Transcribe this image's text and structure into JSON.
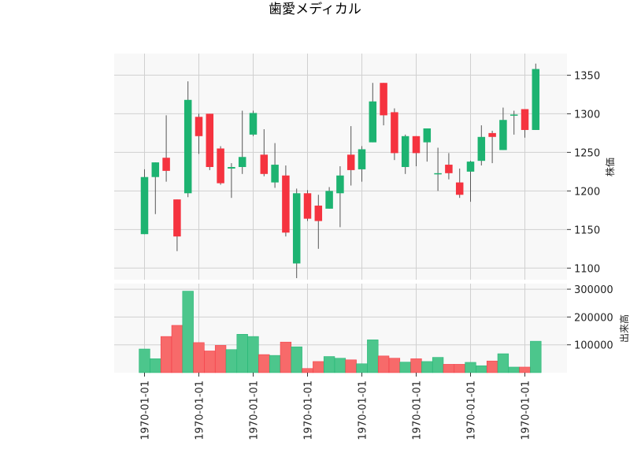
{
  "chart_data": {
    "type": "candlestick",
    "title": "歯愛メディカル",
    "price_ylabel": "株価",
    "volume_ylabel": "出来高",
    "price_ylim": [
      1085,
      1378
    ],
    "price_yticks": [
      1100,
      1150,
      1200,
      1250,
      1300,
      1350
    ],
    "volume_ylim": [
      0,
      320000
    ],
    "volume_yticks": [
      100000,
      200000,
      300000
    ],
    "volume_ytick_labels": [
      "100000",
      "200000",
      "300000"
    ],
    "x_tick_labels": [
      "1970-01-01",
      "1970-01-01",
      "1970-01-01",
      "1970-01-01",
      "1970-01-01",
      "1970-01-01",
      "1970-01-01",
      "1970-01-01"
    ],
    "x_tick_index": [
      0,
      5,
      10,
      15,
      20,
      25,
      30,
      35
    ],
    "colors": {
      "up": "#1db371",
      "down": "#f5333f",
      "up_volume": "#4cc68c",
      "down_volume": "#f76a6a",
      "wick": "#555555"
    },
    "candles": [
      {
        "o": 1144,
        "h": 1228,
        "l": 1144,
        "c": 1218,
        "v": 85000
      },
      {
        "o": 1218,
        "h": 1237,
        "l": 1170,
        "c": 1237,
        "v": 50000
      },
      {
        "o": 1243,
        "h": 1298,
        "l": 1212,
        "c": 1226,
        "v": 130000
      },
      {
        "o": 1189,
        "h": 1189,
        "l": 1122,
        "c": 1141,
        "v": 170000
      },
      {
        "o": 1197,
        "h": 1342,
        "l": 1192,
        "c": 1318,
        "v": 293000
      },
      {
        "o": 1296,
        "h": 1300,
        "l": 1248,
        "c": 1271,
        "v": 108000
      },
      {
        "o": 1300,
        "h": 1300,
        "l": 1227,
        "c": 1231,
        "v": 78000
      },
      {
        "o": 1255,
        "h": 1258,
        "l": 1208,
        "c": 1210,
        "v": 98000
      },
      {
        "o": 1229,
        "h": 1236,
        "l": 1191,
        "c": 1231,
        "v": 83000
      },
      {
        "o": 1231,
        "h": 1304,
        "l": 1222,
        "c": 1244,
        "v": 138000
      },
      {
        "o": 1273,
        "h": 1304,
        "l": 1271,
        "c": 1301,
        "v": 130000
      },
      {
        "o": 1247,
        "h": 1280,
        "l": 1219,
        "c": 1222,
        "v": 65000
      },
      {
        "o": 1211,
        "h": 1262,
        "l": 1204,
        "c": 1234,
        "v": 62000
      },
      {
        "o": 1220,
        "h": 1233,
        "l": 1141,
        "c": 1146,
        "v": 110000
      },
      {
        "o": 1106,
        "h": 1203,
        "l": 1087,
        "c": 1197,
        "v": 93000
      },
      {
        "o": 1197,
        "h": 1201,
        "l": 1161,
        "c": 1164,
        "v": 15000
      },
      {
        "o": 1181,
        "h": 1195,
        "l": 1125,
        "c": 1161,
        "v": 40000
      },
      {
        "o": 1177,
        "h": 1205,
        "l": 1177,
        "c": 1200,
        "v": 58000
      },
      {
        "o": 1197,
        "h": 1232,
        "l": 1153,
        "c": 1220,
        "v": 52000
      },
      {
        "o": 1247,
        "h": 1284,
        "l": 1207,
        "c": 1227,
        "v": 46000
      },
      {
        "o": 1228,
        "h": 1258,
        "l": 1212,
        "c": 1254,
        "v": 32000
      },
      {
        "o": 1263,
        "h": 1340,
        "l": 1263,
        "c": 1316,
        "v": 118000
      },
      {
        "o": 1340,
        "h": 1340,
        "l": 1285,
        "c": 1298,
        "v": 60000
      },
      {
        "o": 1302,
        "h": 1307,
        "l": 1240,
        "c": 1249,
        "v": 52000
      },
      {
        "o": 1231,
        "h": 1273,
        "l": 1222,
        "c": 1271,
        "v": 38000
      },
      {
        "o": 1271,
        "h": 1271,
        "l": 1232,
        "c": 1249,
        "v": 50000
      },
      {
        "o": 1263,
        "h": 1281,
        "l": 1238,
        "c": 1281,
        "v": 40000
      },
      {
        "o": 1223,
        "h": 1256,
        "l": 1200,
        "c": 1223,
        "v": 55000
      },
      {
        "o": 1234,
        "h": 1249,
        "l": 1215,
        "c": 1223,
        "v": 30000
      },
      {
        "o": 1211,
        "h": 1229,
        "l": 1191,
        "c": 1195,
        "v": 30000
      },
      {
        "o": 1225,
        "h": 1239,
        "l": 1186,
        "c": 1238,
        "v": 37000
      },
      {
        "o": 1239,
        "h": 1285,
        "l": 1233,
        "c": 1270,
        "v": 25000
      },
      {
        "o": 1275,
        "h": 1278,
        "l": 1236,
        "c": 1270,
        "v": 42000
      },
      {
        "o": 1253,
        "h": 1308,
        "l": 1253,
        "c": 1292,
        "v": 68000
      },
      {
        "o": 1299,
        "h": 1304,
        "l": 1273,
        "c": 1299,
        "v": 20000
      },
      {
        "o": 1306,
        "h": 1306,
        "l": 1269,
        "c": 1279,
        "v": 20000
      },
      {
        "o": 1279,
        "h": 1365,
        "l": 1279,
        "c": 1358,
        "v": 113000
      }
    ]
  }
}
